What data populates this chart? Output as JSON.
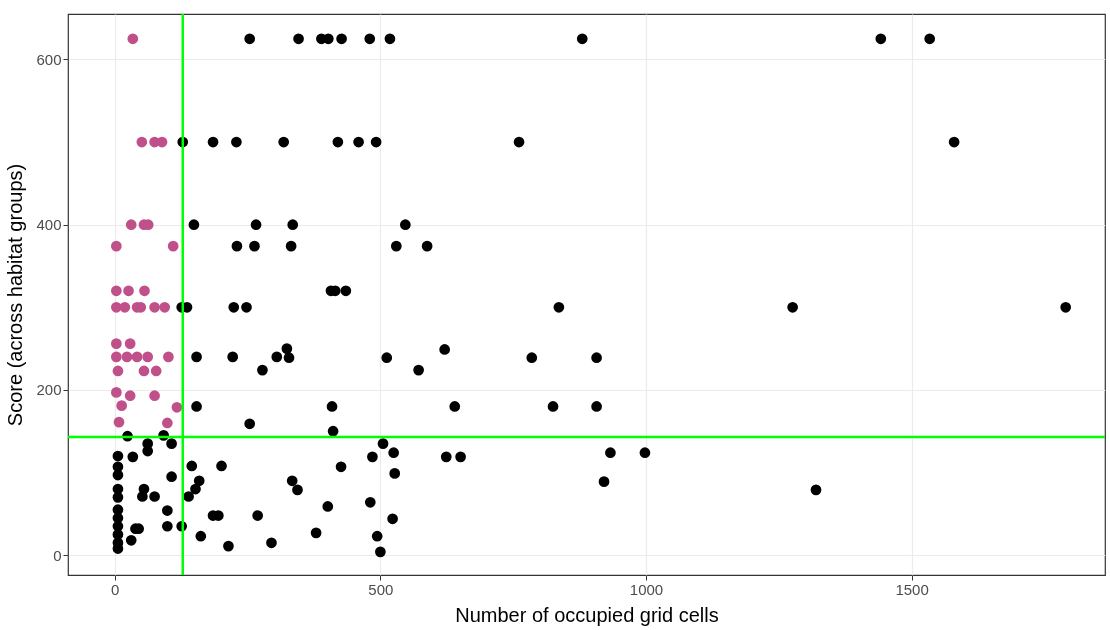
{
  "chart_data": {
    "type": "scatter",
    "xlabel": "Number of occupied grid cells",
    "ylabel": "Score (across habitat groups)",
    "xlim": [
      -88,
      1864
    ],
    "ylim": [
      -24,
      655
    ],
    "xticks": [
      0,
      500,
      1000,
      1500
    ],
    "yticks": [
      0,
      200,
      400,
      600
    ],
    "grid": true,
    "legend": false,
    "marker": "circle",
    "series": [
      {
        "color": "#c0508a",
        "x": [
          34,
          51,
          75,
          89,
          31,
          55,
          63,
          3,
          110,
          3,
          26,
          56,
          3,
          19,
          42,
          49,
          75,
          94,
          3,
          29,
          3,
          23,
          42,
          62,
          101,
          6,
          55,
          78,
          3,
          29,
          13,
          75,
          117,
          8,
          99
        ],
        "values": [
          625,
          500,
          500,
          500,
          400,
          400,
          400,
          374,
          374,
          320,
          320,
          320,
          300,
          300,
          300,
          300,
          300,
          300,
          256,
          256,
          240,
          240,
          240,
          240,
          240,
          223,
          223,
          223,
          197,
          193,
          181,
          193,
          179,
          161,
          160
        ]
      },
      {
        "color": "#000000",
        "x": [
          254,
          346,
          389,
          402,
          427,
          480,
          518,
          880,
          1442,
          1534,
          128,
          185,
          229,
          318,
          420,
          459,
          492,
          761,
          1580,
          149,
          266,
          335,
          547,
          230,
          263,
          332,
          530,
          588,
          407,
          415,
          435,
          126,
          136,
          224,
          248,
          836,
          1276,
          1790,
          154,
          222,
          305,
          324,
          328,
          278,
          154,
          254,
          512,
          572,
          621,
          785,
          907,
          409,
          640,
          825,
          907,
          411,
          24,
          92,
          62,
          62,
          107,
          34,
          505,
          485,
          525,
          624,
          651,
          933,
          998,
          6,
          6,
          6,
          6,
          6,
          6,
          6,
          6,
          6,
          6,
          6,
          145,
          201,
          107,
          159,
          152,
          139,
          55,
          52,
          75,
          334,
          344,
          99,
          185,
          195,
          269,
          99,
          126,
          39,
          45,
          162,
          214,
          295,
          379,
          31,
          426,
          527,
          921,
          1320,
          401,
          481,
          523,
          494,
          500
        ],
        "values": [
          625,
          625,
          625,
          625,
          625,
          625,
          625,
          625,
          625,
          625,
          500,
          500,
          500,
          500,
          500,
          500,
          500,
          500,
          500,
          400,
          400,
          400,
          400,
          374,
          374,
          374,
          374,
          374,
          320,
          320,
          320,
          300,
          300,
          300,
          300,
          300,
          300,
          300,
          240,
          240,
          240,
          250,
          239,
          224,
          180,
          159,
          239,
          224,
          249,
          239,
          239,
          180,
          180,
          180,
          180,
          150,
          144,
          145,
          135,
          126,
          135,
          119,
          135,
          119,
          124,
          119,
          119,
          124,
          124,
          120,
          107,
          97,
          80,
          70,
          55,
          45,
          35,
          25,
          15,
          8,
          108,
          108,
          95,
          90,
          80,
          71,
          80,
          71,
          71,
          90,
          79,
          54,
          48,
          48,
          48,
          35,
          35,
          32,
          32,
          23,
          11,
          15,
          27,
          18,
          107,
          99,
          89,
          79,
          59,
          64,
          44,
          23,
          4
        ]
      }
    ],
    "ref_lines": [
      {
        "axis": "x",
        "value": 128,
        "color": "#00ff00"
      },
      {
        "axis": "y",
        "value": 143,
        "color": "#00ff00"
      }
    ]
  }
}
